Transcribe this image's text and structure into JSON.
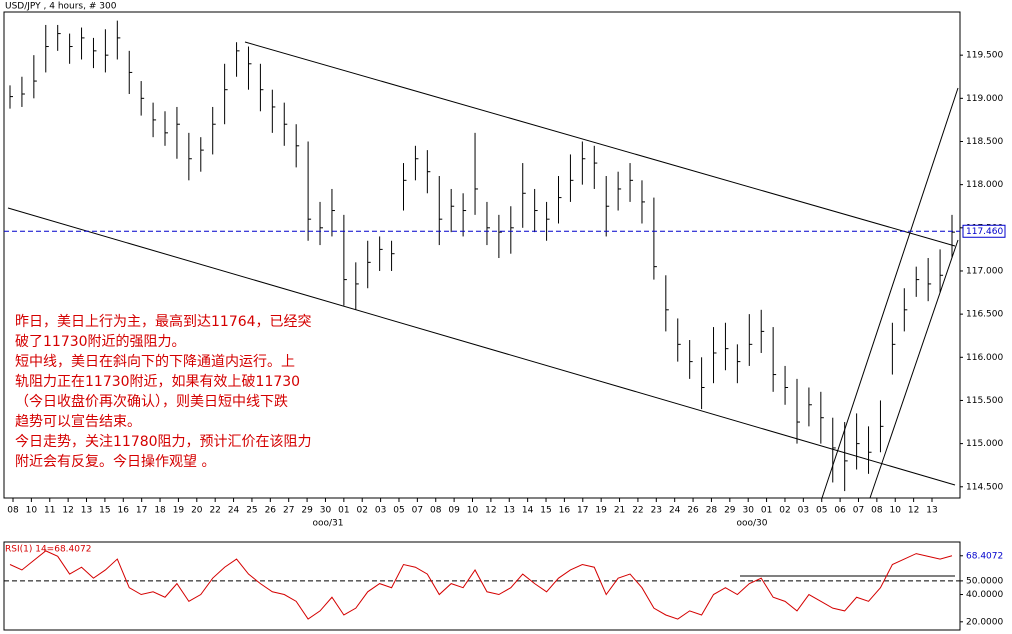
{
  "chart_data": [
    {
      "type": "ohlc",
      "title": "USD/JPY , 4 hours, # 300",
      "color": "#000000",
      "x_labels": [
        "08",
        "10",
        "11",
        "12",
        "13",
        "15",
        "16",
        "17",
        "18",
        "19",
        "20",
        "22",
        "24",
        "25",
        "26",
        "27",
        "29",
        "30",
        "01",
        "02",
        "03",
        "05",
        "07",
        "08",
        "09",
        "10",
        "12",
        "13",
        "14",
        "15",
        "16",
        "17",
        "19",
        "21",
        "22",
        "23",
        "24",
        "26",
        "28",
        "29",
        "30",
        "01",
        "02",
        "03",
        "05",
        "06",
        "07",
        "08",
        "10",
        "12",
        "13"
      ],
      "month_labels": [
        "ooo/31",
        "ooo/30"
      ],
      "high": [
        119.15,
        119.25,
        119.5,
        119.85,
        119.85,
        119.75,
        119.82,
        119.7,
        119.8,
        119.9,
        119.55,
        119.2,
        118.95,
        118.85,
        118.9,
        118.6,
        118.55,
        118.9,
        119.4,
        119.65,
        119.6,
        119.4,
        119.1,
        118.95,
        118.7,
        118.5,
        117.8,
        117.95,
        117.65,
        117.1,
        117.35,
        117.4,
        117.35,
        118.25,
        118.45,
        118.4,
        118.1,
        117.95,
        117.9,
        118.6,
        117.8,
        117.65,
        117.75,
        118.25,
        117.95,
        117.8,
        118.1,
        118.35,
        118.5,
        118.45,
        118.1,
        118.15,
        118.25,
        118.05,
        117.85,
        116.95,
        116.45,
        116.2,
        116.0,
        116.35,
        116.4,
        116.15,
        116.5,
        116.55,
        116.35,
        115.9,
        115.75,
        115.65,
        115.6,
        115.3,
        115.25,
        115.35,
        115.2,
        115.5,
        116.4,
        116.8,
        117.05,
        117.15,
        117.25,
        117.65
      ],
      "low": [
        118.88,
        118.9,
        119.0,
        119.3,
        119.55,
        119.4,
        119.45,
        119.35,
        119.3,
        119.45,
        119.05,
        118.8,
        118.55,
        118.45,
        118.3,
        118.05,
        118.15,
        118.35,
        118.7,
        119.25,
        119.1,
        118.85,
        118.6,
        118.45,
        118.2,
        117.35,
        117.3,
        117.4,
        116.6,
        116.55,
        116.8,
        117.0,
        117.0,
        117.7,
        118.05,
        117.9,
        117.3,
        117.45,
        117.4,
        117.65,
        117.3,
        117.15,
        117.2,
        117.5,
        117.45,
        117.35,
        117.55,
        117.8,
        118.0,
        117.95,
        117.4,
        117.7,
        117.8,
        117.55,
        116.9,
        116.3,
        115.95,
        115.75,
        115.4,
        115.7,
        115.85,
        115.7,
        115.9,
        116.05,
        115.6,
        115.45,
        115.0,
        115.2,
        115.0,
        114.55,
        114.45,
        114.7,
        114.65,
        114.9,
        115.8,
        116.3,
        116.7,
        116.65,
        116.75,
        117.15
      ],
      "close": [
        119.02,
        119.05,
        119.2,
        119.6,
        119.75,
        119.6,
        119.7,
        119.55,
        119.5,
        119.7,
        119.3,
        119.0,
        118.75,
        118.6,
        118.7,
        118.3,
        118.4,
        118.7,
        119.1,
        119.55,
        119.4,
        119.1,
        118.9,
        118.7,
        118.45,
        117.6,
        117.5,
        117.7,
        116.9,
        116.85,
        117.1,
        117.25,
        117.2,
        118.05,
        118.3,
        118.15,
        117.6,
        117.75,
        117.7,
        117.95,
        117.5,
        117.45,
        117.5,
        117.9,
        117.7,
        117.6,
        117.85,
        118.05,
        118.3,
        118.25,
        117.75,
        117.95,
        118.05,
        117.8,
        117.05,
        116.55,
        116.15,
        115.95,
        115.65,
        116.05,
        116.1,
        115.95,
        116.15,
        116.3,
        115.8,
        115.65,
        115.25,
        115.45,
        115.3,
        114.95,
        114.8,
        115.0,
        114.9,
        115.2,
        116.15,
        116.55,
        116.9,
        116.85,
        116.95,
        117.45
      ],
      "ylim": [
        114.37,
        120.0
      ],
      "yticks": [
        {
          "value": 114.5,
          "label": "114.500"
        },
        {
          "value": 115,
          "label": "115.000"
        },
        {
          "value": 115.5,
          "label": "115.500"
        },
        {
          "value": 116,
          "label": "116.000"
        },
        {
          "value": 116.5,
          "label": "116.500"
        },
        {
          "value": 117,
          "label": "117.000"
        },
        {
          "value": 117.5,
          "label": "117.500"
        },
        {
          "value": 118,
          "label": "118.000"
        },
        {
          "value": 118.5,
          "label": "118.500"
        },
        {
          "value": 119,
          "label": "119.000"
        },
        {
          "value": 119.5,
          "label": "119.500"
        }
      ],
      "reference_line": {
        "value": 117.46,
        "label": "117.460",
        "color": "#0000cc"
      },
      "annotation": [
        "昨日，美日上行为主，最高到达11764，已经突",
        "破了11730附近的强阻力。",
        "短中线，美日在斜向下的下降通道内运行。上",
        "轨阻力正在11730附近，如果有效上破11730",
        "（今日收盘价再次确认），则美日短中线下跌",
        "趋势可以宣告结束。",
        "今日走势，关注11780阻力，预计汇价在该阻力",
        "附近会有反复。今日操作观望 。"
      ]
    },
    {
      "type": "line",
      "title": "RSI(1) 14=68.4072",
      "color": "#d40000",
      "values": [
        62,
        58,
        65,
        72,
        68,
        55,
        60,
        52,
        58,
        66,
        45,
        40,
        42,
        38,
        48,
        35,
        40,
        52,
        60,
        66,
        55,
        48,
        42,
        40,
        35,
        22,
        28,
        38,
        25,
        30,
        42,
        48,
        45,
        62,
        60,
        55,
        40,
        48,
        45,
        58,
        42,
        40,
        45,
        55,
        48,
        42,
        52,
        58,
        62,
        60,
        40,
        52,
        55,
        45,
        30,
        25,
        22,
        28,
        25,
        40,
        45,
        40,
        48,
        52,
        38,
        35,
        28,
        40,
        35,
        30,
        28,
        38,
        35,
        45,
        62,
        66,
        70,
        68,
        66,
        68.4072
      ],
      "ylim": [
        14,
        78.5
      ],
      "yticks": [
        {
          "value": 20,
          "label": "20.0000"
        },
        {
          "value": 40,
          "label": "40.0000"
        },
        {
          "value": 50,
          "label": "50.0000"
        },
        {
          "value": 68.4072,
          "label": "68.4072"
        }
      ],
      "reference_level": 50
    }
  ]
}
